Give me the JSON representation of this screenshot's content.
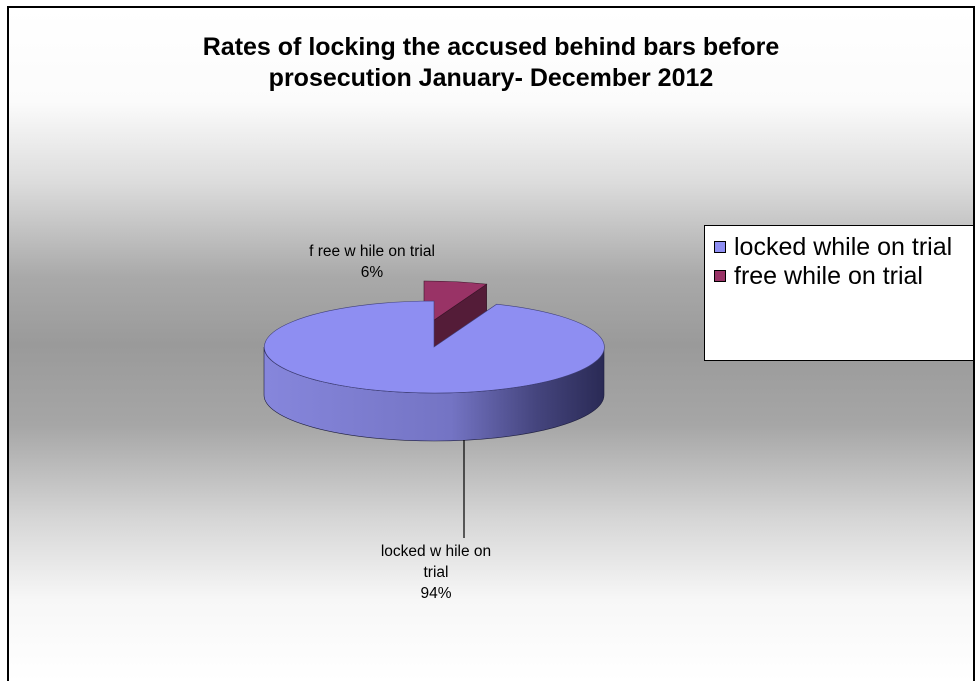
{
  "chart_data": {
    "type": "pie",
    "title_lines": [
      "Rates of locking the accused behind bars before",
      "prosecution January- December 2012"
    ],
    "categories": [
      "locked while on trial",
      "free while on trial"
    ],
    "values": [
      94,
      6
    ],
    "colors": [
      "#8e8ef2",
      "#993366"
    ],
    "legend_position": "right",
    "data_labels": [
      {
        "lines": [
          "locked w hile on",
          "trial",
          "94%"
        ]
      },
      {
        "lines": [
          "f ree w hile on trial",
          "6%"
        ]
      }
    ],
    "style": "3d, exploded slice"
  }
}
